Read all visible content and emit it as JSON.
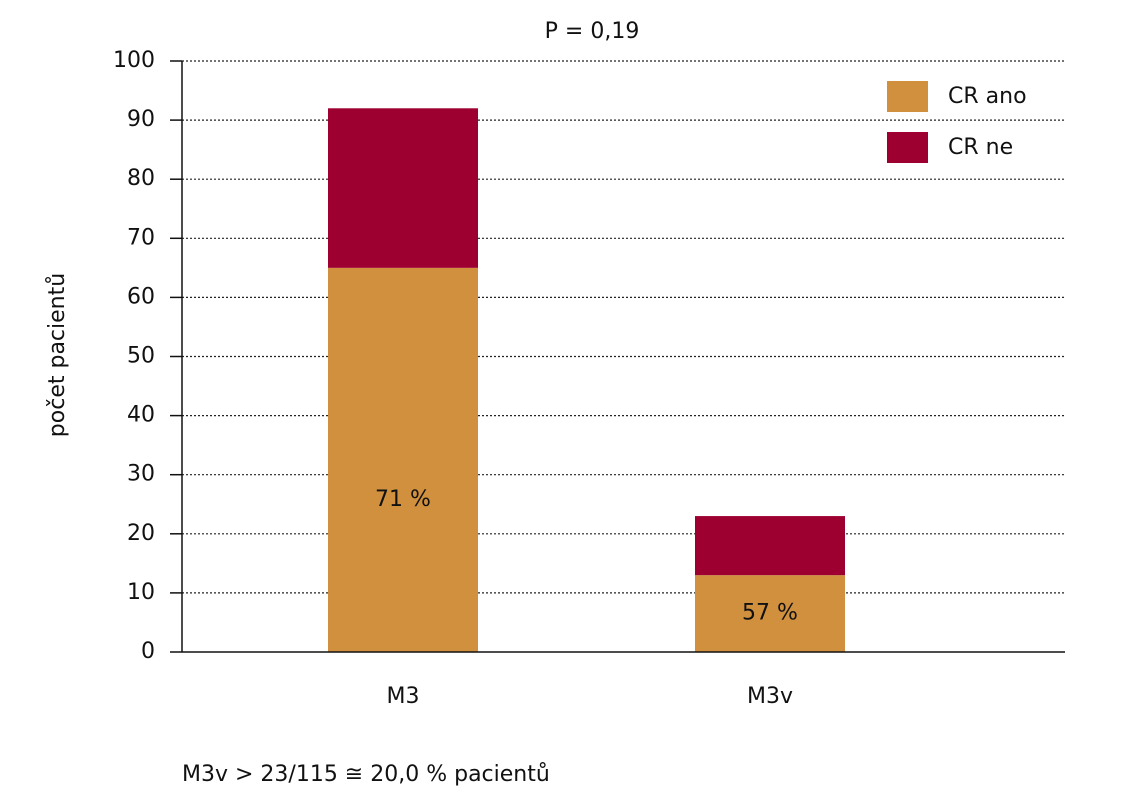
{
  "chart_data": {
    "type": "stacked_bar",
    "title": "P = 0,19",
    "ylabel": "počet pacientů",
    "categories": [
      "M3",
      "M3v"
    ],
    "series": [
      {
        "name": "CR ano",
        "color": "#d0903e",
        "values": [
          65,
          13
        ]
      },
      {
        "name": "CR ne",
        "color": "#9d0030",
        "values": [
          27,
          10
        ]
      }
    ],
    "annotations": [
      "71 %",
      "57 %"
    ],
    "footnote": "M3v > 23/115 ≅ 20,0 %  pacientů",
    "ylim": [
      0,
      100
    ],
    "yticks": [
      0,
      10,
      20,
      30,
      40,
      50,
      60,
      70,
      80,
      90,
      100
    ],
    "grid": true,
    "legend": "top-right"
  }
}
